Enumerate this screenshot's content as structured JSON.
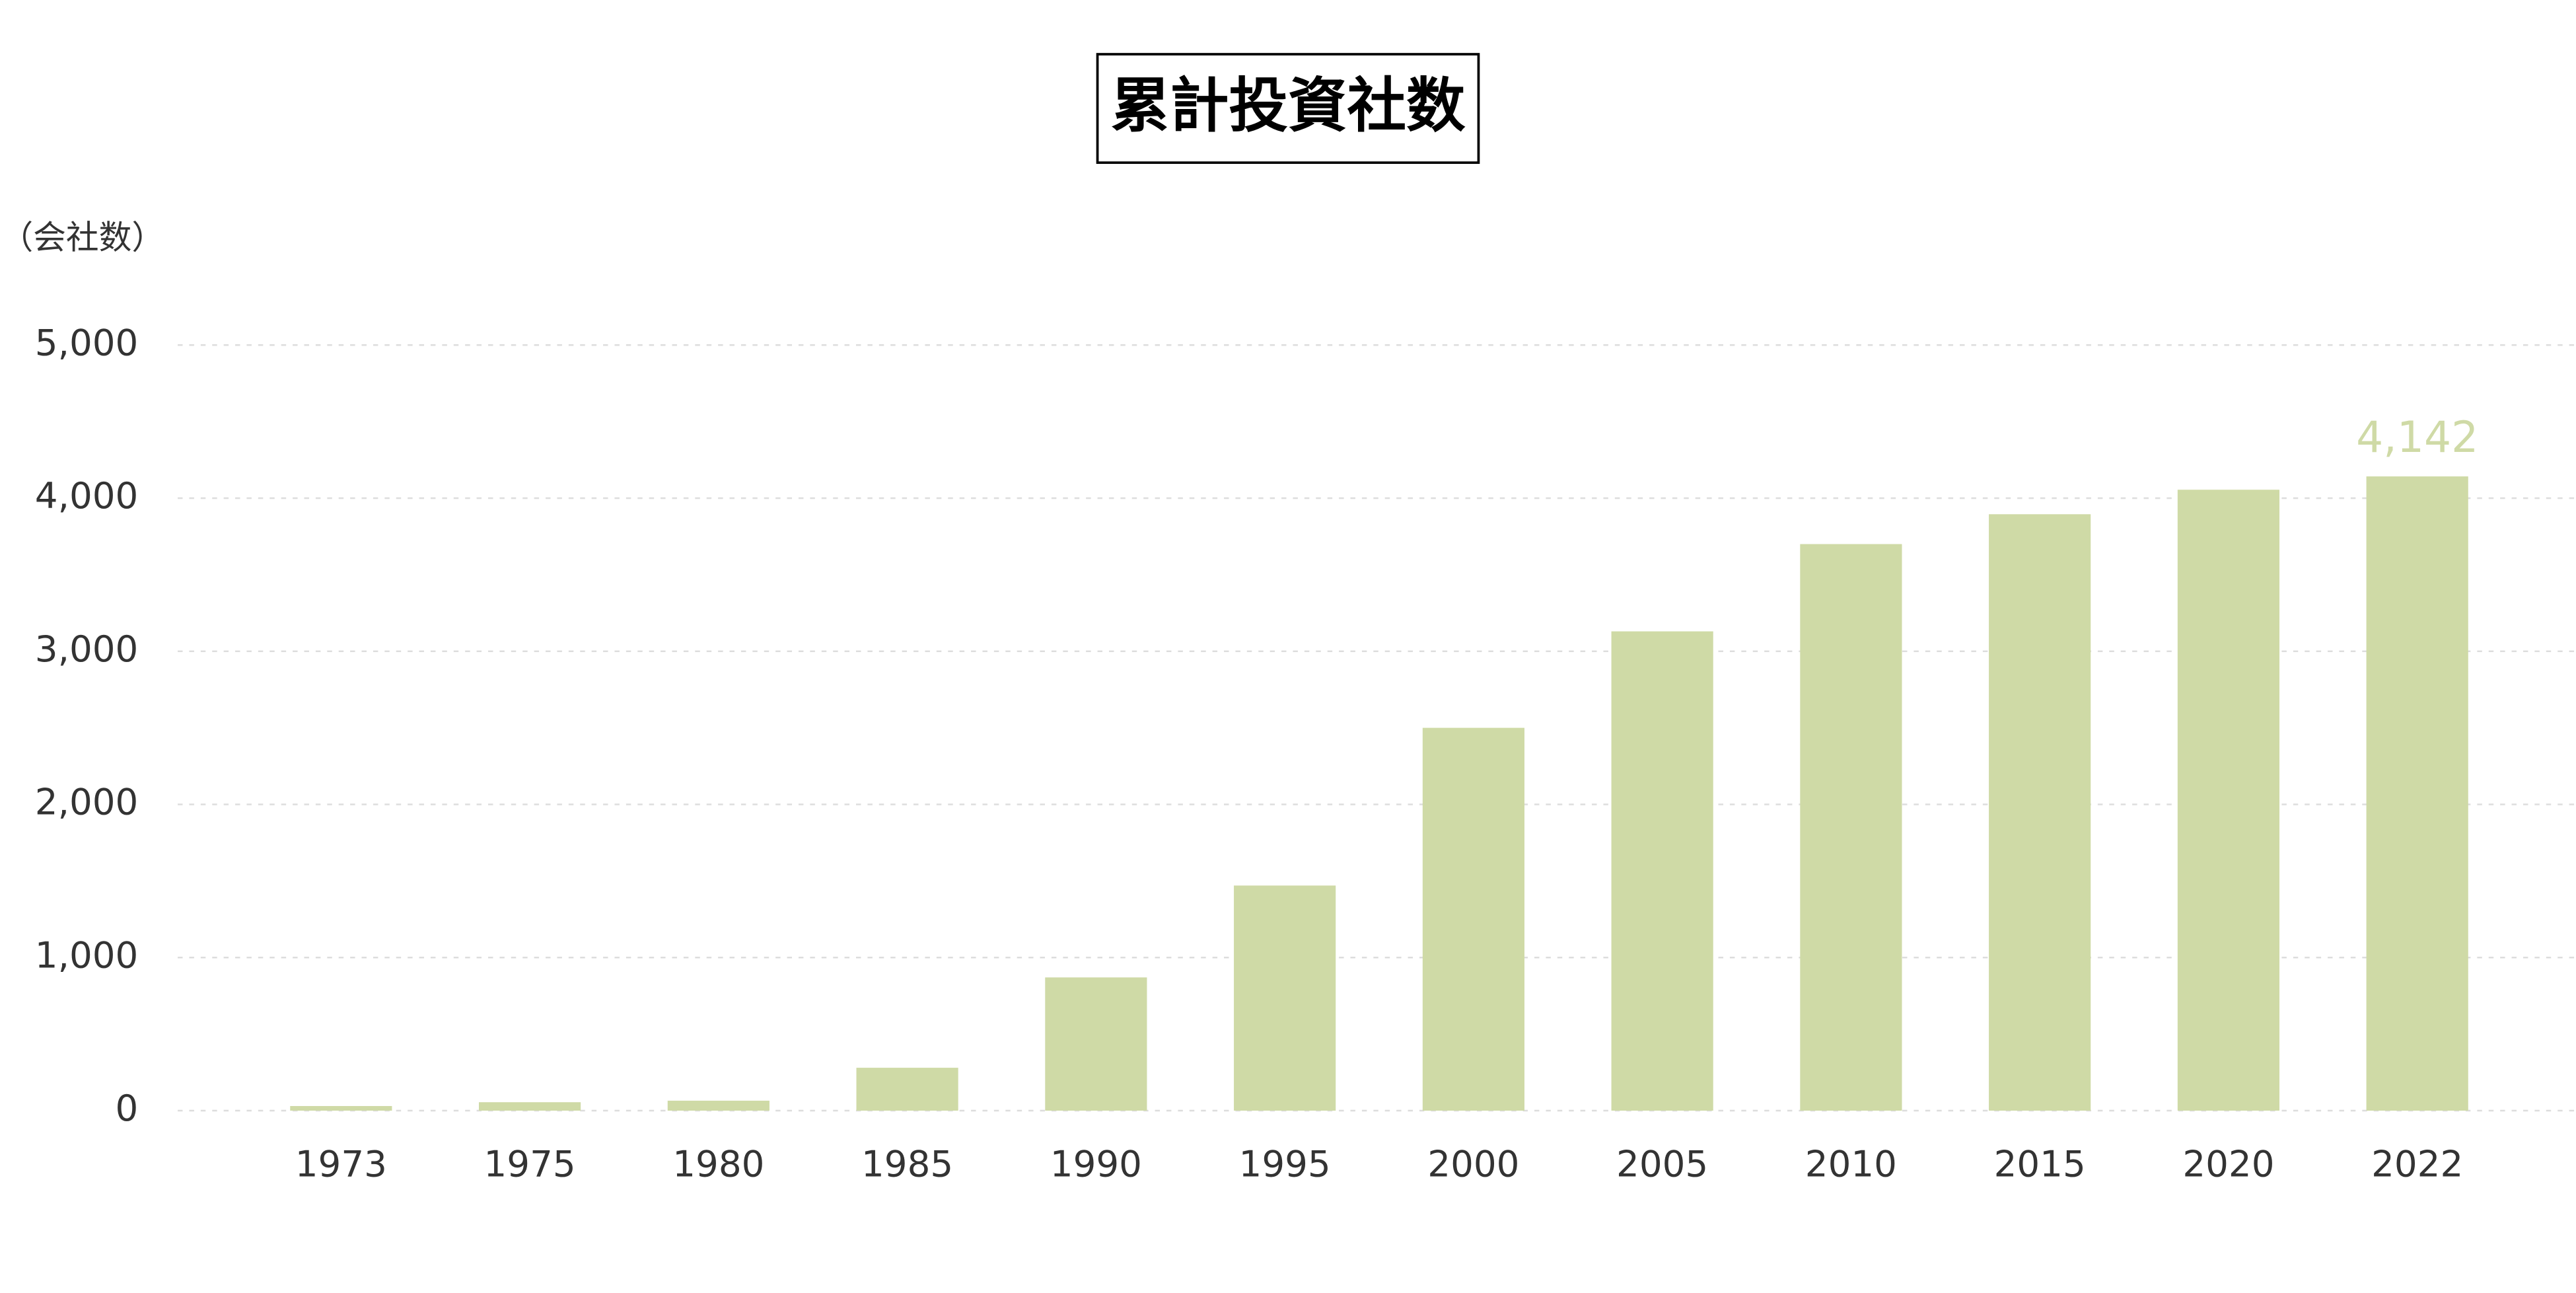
{
  "chart_data": {
    "type": "bar",
    "title": "累計投資社数",
    "y_axis_label": "（会社数）",
    "categories": [
      "1973",
      "1975",
      "1980",
      "1985",
      "1990",
      "1995",
      "2000",
      "2005",
      "2010",
      "2015",
      "2020",
      "2022"
    ],
    "values": [
      30,
      55,
      65,
      280,
      870,
      1470,
      2500,
      3130,
      3700,
      3895,
      4055,
      4142
    ],
    "value_labels": [
      null,
      null,
      null,
      null,
      null,
      null,
      null,
      null,
      null,
      null,
      null,
      "4,142"
    ],
    "color": "#cfdaa6",
    "ylim": [
      0,
      5000
    ],
    "yticks": [
      0,
      {
        "value": 1000,
        "label": "1,000"
      },
      {
        "value": 2000,
        "label": "2,000"
      },
      {
        "value": 3000,
        "label": "3,000"
      },
      {
        "value": 4000,
        "label": "4,000"
      },
      {
        "value": 5000,
        "label": "5,000"
      }
    ],
    "grid": true
  }
}
